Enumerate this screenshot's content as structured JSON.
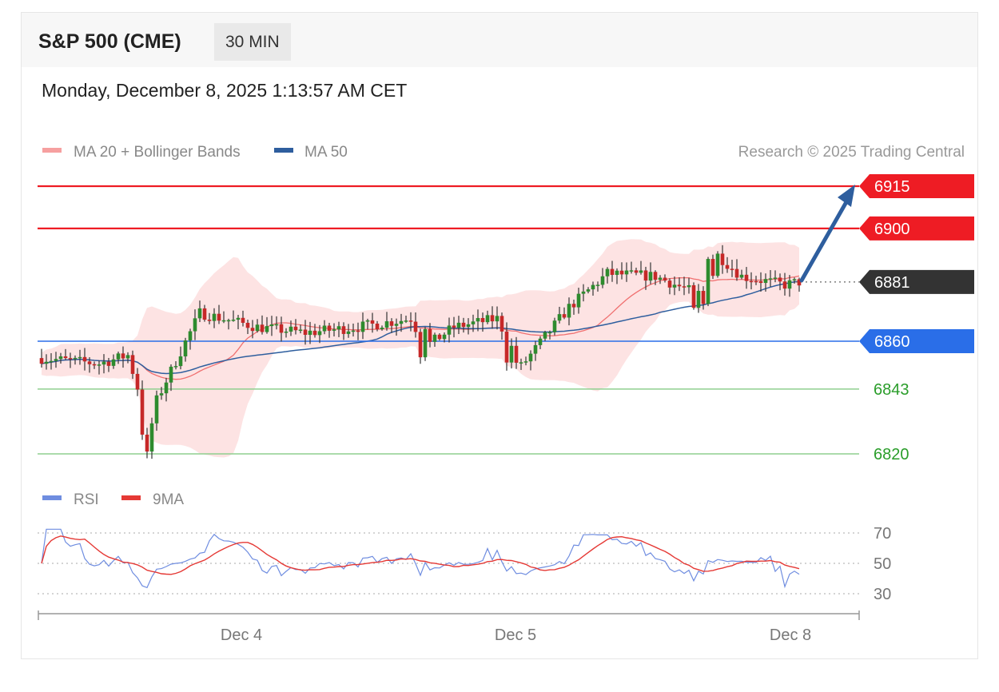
{
  "header": {
    "title": "S&P 500 (CME)",
    "interval": "30 MIN",
    "datetime": "Monday, December 8, 2025 1:13:57 AM CET"
  },
  "legend": {
    "ma20_bb": "MA 20 + Bollinger Bands",
    "ma50": "MA 50",
    "credit": "Research © 2025 Trading Central",
    "rsi": "RSI",
    "rsi_ma": "9MA"
  },
  "colors": {
    "resistance": "#ee1c24",
    "pivot": "#2a6ee8",
    "support": "#2a9d2a",
    "last": "#333333",
    "ma50": "#2e5e9e",
    "ma20": "#f07070",
    "band": "#fddede",
    "candle_up": "#2e8b2e",
    "candle_down": "#c62828",
    "rsi": "#6f8de0",
    "rsi_ma": "#e53935",
    "arrow": "#2e5e9e"
  },
  "chart_data": {
    "type": "candlestick",
    "x_ticks": [
      "Dec 4",
      "Dec 5",
      "Dec 8"
    ],
    "price_range": [
      6814,
      6920
    ],
    "levels": [
      {
        "label": "6915",
        "value": 6915,
        "kind": "resistance"
      },
      {
        "label": "6900",
        "value": 6900,
        "kind": "resistance"
      },
      {
        "label": "6881",
        "value": 6881,
        "kind": "last"
      },
      {
        "label": "6860",
        "value": 6860,
        "kind": "pivot"
      },
      {
        "label": "6843",
        "value": 6843,
        "kind": "support"
      },
      {
        "label": "6820",
        "value": 6820,
        "kind": "support"
      }
    ],
    "forecast_arrow": {
      "from": 6881,
      "to": 6915
    },
    "rsi_ticks": [
      70,
      50,
      30
    ],
    "rsi_range": [
      22,
      80
    ]
  }
}
